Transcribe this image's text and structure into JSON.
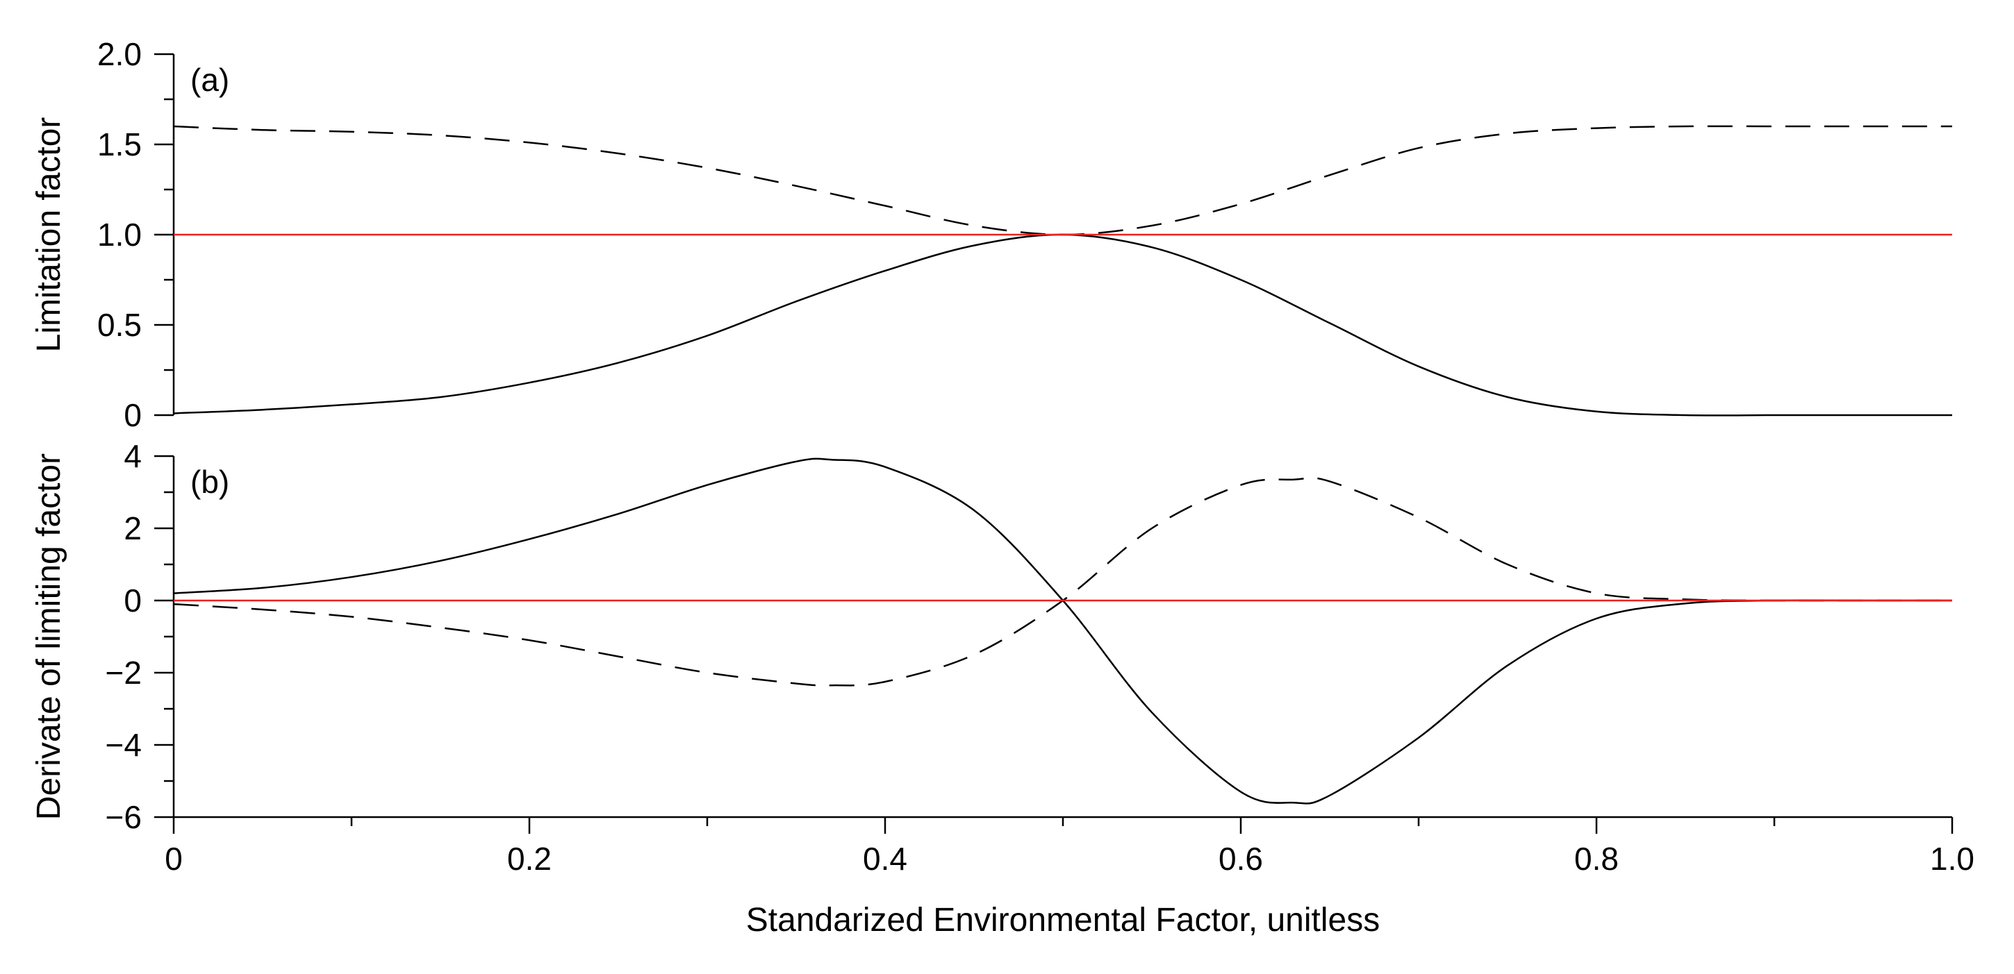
{
  "chart_data": [
    {
      "panel": "a",
      "type": "line",
      "panel_label": "(a)",
      "ylabel": "Limitation factor",
      "xlabel": "",
      "xlim": [
        0,
        1
      ],
      "ylim": [
        0,
        2
      ],
      "yticks": [
        0,
        0.5,
        1.0,
        1.5,
        2.0
      ],
      "ytick_labels": [
        "0",
        "0.5",
        "1.0",
        "1.5",
        "2.0"
      ],
      "grid": false,
      "series": [
        {
          "name": "limitation-solid",
          "style": "solid",
          "color": "#000000",
          "x": [
            0,
            0.05,
            0.1,
            0.15,
            0.2,
            0.25,
            0.3,
            0.35,
            0.4,
            0.45,
            0.5,
            0.55,
            0.6,
            0.65,
            0.7,
            0.75,
            0.8,
            0.85,
            0.9,
            0.95,
            1.0
          ],
          "y": [
            0.01,
            0.03,
            0.06,
            0.1,
            0.18,
            0.29,
            0.44,
            0.63,
            0.8,
            0.94,
            1.0,
            0.93,
            0.75,
            0.51,
            0.27,
            0.1,
            0.02,
            0.0,
            0.0,
            0.0,
            0.0
          ]
        },
        {
          "name": "limitation-dashed",
          "style": "dashed",
          "color": "#000000",
          "x": [
            0,
            0.05,
            0.1,
            0.15,
            0.2,
            0.25,
            0.3,
            0.35,
            0.4,
            0.45,
            0.5,
            0.55,
            0.6,
            0.65,
            0.7,
            0.75,
            0.8,
            0.85,
            0.9,
            0.95,
            1.0
          ],
          "y": [
            1.6,
            1.58,
            1.57,
            1.55,
            1.51,
            1.45,
            1.37,
            1.27,
            1.16,
            1.05,
            1.0,
            1.05,
            1.17,
            1.33,
            1.48,
            1.56,
            1.59,
            1.6,
            1.6,
            1.6,
            1.6
          ]
        },
        {
          "name": "reference-one",
          "style": "solid",
          "color": "#e8231f",
          "x": [
            0,
            1
          ],
          "y": [
            1.0,
            1.0
          ]
        }
      ]
    },
    {
      "panel": "b",
      "type": "line",
      "panel_label": "(b)",
      "ylabel": "Derivate of limiting factor",
      "xlabel": "Standarized Environmental Factor, unitless",
      "xlim": [
        0,
        1
      ],
      "ylim": [
        -6,
        4
      ],
      "xticks": [
        0,
        0.2,
        0.4,
        0.6,
        0.8,
        1.0
      ],
      "xtick_labels": [
        "0",
        "0.2",
        "0.4",
        "0.6",
        "0.8",
        "1.0"
      ],
      "yticks": [
        -6,
        -4,
        -2,
        0,
        2,
        4
      ],
      "ytick_labels": [
        "−6",
        "−4",
        "−2",
        "0",
        "2",
        "4"
      ],
      "grid": false,
      "series": [
        {
          "name": "derivative-solid",
          "style": "solid",
          "color": "#000000",
          "x": [
            0,
            0.05,
            0.1,
            0.15,
            0.2,
            0.25,
            0.3,
            0.35,
            0.37,
            0.4,
            0.45,
            0.5,
            0.55,
            0.6,
            0.63,
            0.65,
            0.7,
            0.75,
            0.8,
            0.85,
            0.9,
            0.95,
            1.0
          ],
          "y": [
            0.2,
            0.35,
            0.65,
            1.1,
            1.7,
            2.4,
            3.2,
            3.85,
            3.9,
            3.7,
            2.5,
            0.0,
            -3.1,
            -5.3,
            -5.6,
            -5.4,
            -3.8,
            -1.8,
            -0.5,
            -0.08,
            0.0,
            0.0,
            0.0
          ]
        },
        {
          "name": "derivative-dashed",
          "style": "dashed",
          "color": "#000000",
          "x": [
            0,
            0.05,
            0.1,
            0.15,
            0.2,
            0.25,
            0.3,
            0.35,
            0.37,
            0.4,
            0.45,
            0.5,
            0.55,
            0.6,
            0.63,
            0.65,
            0.7,
            0.75,
            0.8,
            0.85,
            0.9,
            0.95,
            1.0
          ],
          "y": [
            -0.1,
            -0.25,
            -0.45,
            -0.75,
            -1.1,
            -1.55,
            -2.0,
            -2.3,
            -2.35,
            -2.25,
            -1.5,
            0.0,
            2.0,
            3.2,
            3.35,
            3.3,
            2.3,
            1.0,
            0.2,
            0.03,
            0.0,
            0.0,
            0.0
          ]
        },
        {
          "name": "reference-zero",
          "style": "solid",
          "color": "#e8231f",
          "x": [
            0,
            1
          ],
          "y": [
            0,
            0
          ]
        }
      ]
    }
  ]
}
